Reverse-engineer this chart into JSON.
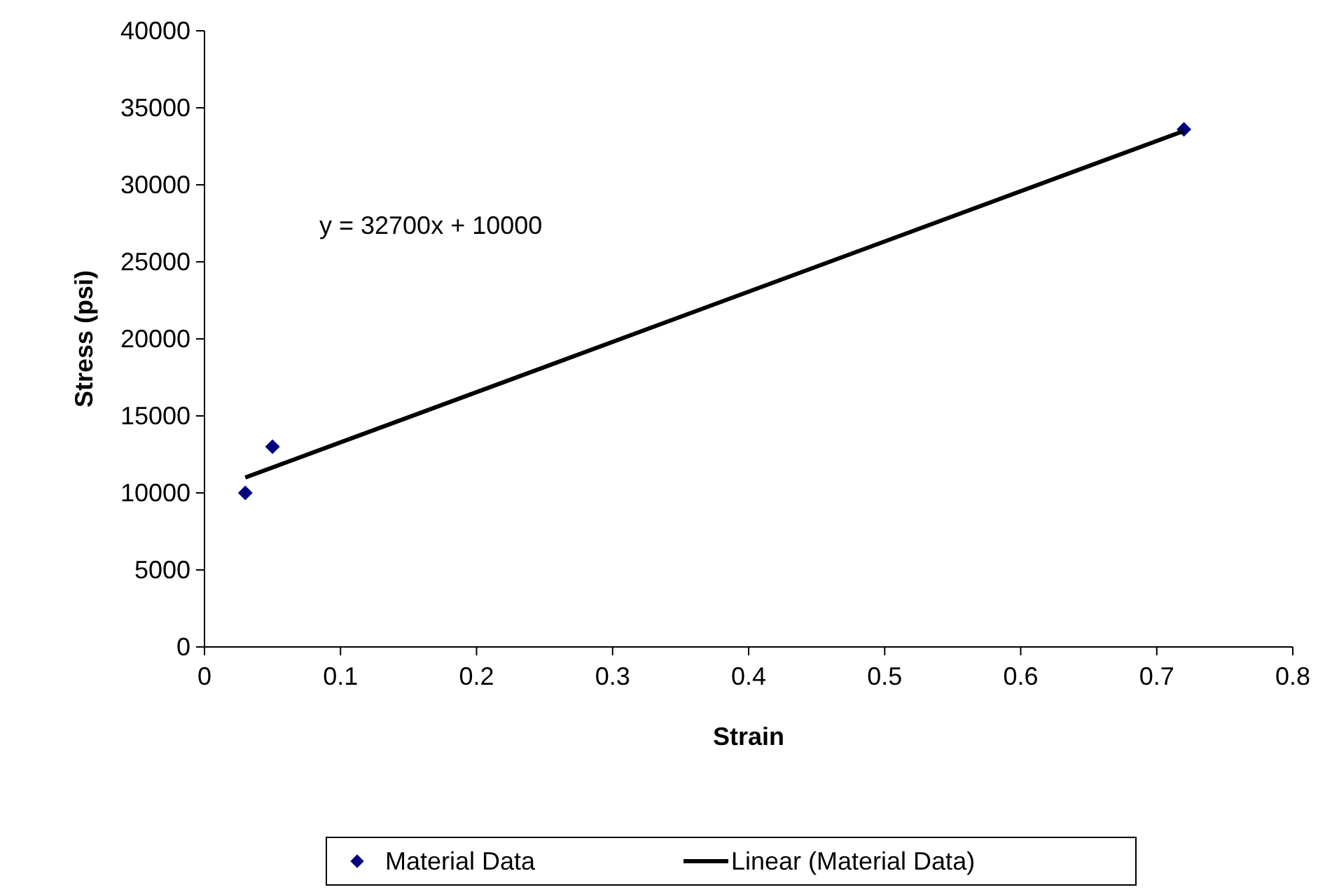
{
  "chart_data": {
    "type": "scatter",
    "xlabel": "Strain",
    "ylabel": "Stress (psi)",
    "series": [
      {
        "name": "Material Data",
        "color": "#000080",
        "marker": "diamond",
        "x": [
          0.03,
          0.05,
          0.72
        ],
        "values": [
          10000,
          13000,
          33600
        ]
      },
      {
        "name": "Linear (Material Data)",
        "type": "line",
        "color": "#000000",
        "marker": "none",
        "line_style": "solid",
        "x": [
          0.03,
          0.72
        ],
        "values": [
          11000,
          33500
        ]
      }
    ],
    "xlim": [
      0,
      0.8
    ],
    "xticks": [
      0,
      0.1,
      0.2,
      0.3,
      0.4,
      0.5,
      0.6,
      0.7,
      0.8
    ],
    "ylim": [
      0,
      40000
    ],
    "yticks": [
      0,
      5000,
      10000,
      15000,
      20000,
      25000,
      30000,
      35000,
      40000
    ],
    "annotations": [
      "y = 32700x + 10000"
    ],
    "grid": false,
    "legend": "bottom"
  }
}
